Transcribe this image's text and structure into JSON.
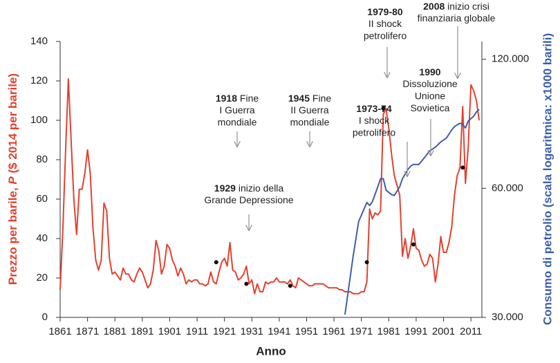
{
  "chart_data": {
    "type": "line",
    "xlabel": "Anno",
    "ylabel": [
      "Prezzo per barile, ",
      "P",
      " ($ 2014 per barile)"
    ],
    "y2label": "Consumo di petrolio (scala logaritmica: x1000 barili)",
    "xlim": [
      1861,
      2015
    ],
    "xticks": [
      1861,
      1871,
      1881,
      1891,
      1901,
      1911,
      1921,
      1931,
      1941,
      1951,
      1961,
      1971,
      1981,
      1991,
      2001,
      2011
    ],
    "ylim": [
      0,
      140
    ],
    "yticks": [
      0,
      20,
      40,
      60,
      80,
      100,
      120,
      140
    ],
    "y2lim": [
      30000,
      132000
    ],
    "y2ticks": [
      {
        "value": 30000,
        "label": "30.000"
      },
      {
        "value": 60000,
        "label": "60.000"
      },
      {
        "value": 120000,
        "label": "120.000"
      }
    ],
    "y2scale": "log",
    "left_color": "#e2412e",
    "right_color": "#3c5ea8",
    "series": [
      {
        "color": "#e2412e",
        "axis": "y",
        "x": [
          1861,
          1862,
          1863,
          1864,
          1865,
          1866,
          1867,
          1868,
          1869,
          1870,
          1871,
          1872,
          1873,
          1874,
          1875,
          1876,
          1877,
          1878,
          1879,
          1880,
          1881,
          1882,
          1883,
          1884,
          1885,
          1886,
          1887,
          1888,
          1889,
          1890,
          1891,
          1892,
          1893,
          1894,
          1895,
          1896,
          1897,
          1898,
          1899,
          1900,
          1901,
          1902,
          1903,
          1904,
          1905,
          1906,
          1907,
          1908,
          1909,
          1910,
          1911,
          1912,
          1913,
          1914,
          1915,
          1916,
          1917,
          1918,
          1919,
          1920,
          1921,
          1922,
          1923,
          1924,
          1925,
          1926,
          1927,
          1928,
          1929,
          1930,
          1931,
          1932,
          1933,
          1934,
          1935,
          1936,
          1937,
          1938,
          1939,
          1940,
          1941,
          1942,
          1943,
          1944,
          1945,
          1946,
          1947,
          1948,
          1949,
          1950,
          1951,
          1952,
          1953,
          1954,
          1955,
          1956,
          1957,
          1958,
          1959,
          1960,
          1961,
          1962,
          1963,
          1964,
          1965,
          1966,
          1967,
          1968,
          1969,
          1970,
          1971,
          1972,
          1973,
          1974,
          1975,
          1976,
          1977,
          1978,
          1979,
          1980,
          1981,
          1982,
          1983,
          1984,
          1985,
          1986,
          1987,
          1988,
          1989,
          1990,
          1991,
          1992,
          1993,
          1994,
          1995,
          1996,
          1997,
          1998,
          1999,
          2000,
          2001,
          2002,
          2003,
          2004,
          2005,
          2006,
          2007,
          2008,
          2009,
          2010,
          2011,
          2012,
          2013,
          2014
        ],
        "values": [
          14,
          45,
          85,
          121,
          90,
          60,
          42,
          65,
          65,
          73,
          85,
          73,
          45,
          29,
          24,
          29,
          58,
          54,
          30,
          22,
          23,
          21,
          19,
          25,
          22,
          22,
          19,
          18,
          22,
          25,
          23,
          19,
          15,
          17,
          24,
          39,
          34,
          22,
          26,
          37,
          35,
          29,
          26,
          21,
          25,
          22,
          17,
          19,
          18,
          19,
          19,
          17,
          17,
          16,
          17,
          23,
          18,
          17,
          23,
          28,
          30,
          26,
          38,
          24,
          23,
          19,
          20,
          22,
          26,
          17,
          19,
          12,
          17,
          13,
          13,
          18,
          17,
          18,
          18,
          20,
          18,
          18,
          18,
          17,
          19,
          16,
          15,
          20,
          19,
          18,
          17,
          16,
          16,
          17,
          17,
          17,
          17,
          16,
          15,
          15,
          15,
          15,
          14,
          14,
          13,
          13,
          13,
          12,
          12,
          12,
          13,
          13,
          18,
          55,
          50,
          53,
          52,
          54,
          103,
          106,
          96,
          83,
          72,
          67,
          62,
          31,
          40,
          30,
          36,
          45,
          35,
          34,
          29,
          26,
          27,
          32,
          30,
          18,
          27,
          41,
          33,
          33,
          38,
          46,
          62,
          72,
          76,
          107,
          68,
          86,
          118,
          115,
          110,
          100
        ]
      },
      {
        "color": "#3c5ea8",
        "axis": "y2",
        "x": [
          1965,
          1968,
          1970,
          1973,
          1974,
          1975,
          1977,
          1978,
          1979,
          1980,
          1982,
          1983,
          1985,
          1986,
          1988,
          1989,
          1990,
          1992,
          1994,
          1996,
          1998,
          2000,
          2002,
          2004,
          2005,
          2007,
          2008,
          2009,
          2010,
          2012,
          2013,
          2014
        ],
        "values": [
          30450,
          41700,
          50200,
          55600,
          54700,
          55800,
          60500,
          63200,
          63200,
          59400,
          58000,
          57700,
          60500,
          63200,
          66400,
          67600,
          68200,
          68200,
          70700,
          73400,
          74800,
          77000,
          78500,
          82100,
          83600,
          85100,
          84500,
          83000,
          86100,
          88400,
          90400,
          91700
        ]
      }
    ],
    "annotations": [
      {
        "label": "1918",
        "after": "Fine",
        "lines": [
          "I Guerra",
          "mondiale"
        ],
        "x": 1918,
        "y": 28
      },
      {
        "label": "1929",
        "after": "inizio della",
        "lines": [
          "Grande Depressione"
        ],
        "x": 1929,
        "y": 17
      },
      {
        "label": "1945",
        "after": "Fine",
        "lines": [
          "II Guerra",
          "mondiale"
        ],
        "x": 1945,
        "y": 16
      },
      {
        "label": "1973-74",
        "lines": [
          "I shock",
          "petrolifero"
        ],
        "x": 1973,
        "y": 28
      },
      {
        "label": "1979-80",
        "lines": [
          "II shock",
          "petrolifero"
        ],
        "x": 1979,
        "y": 106
      },
      {
        "label": "1990",
        "lines": [
          "Dissoluzione",
          "Unione",
          "Sovietica"
        ],
        "x": 1990,
        "y": 37
      },
      {
        "label": "2008",
        "after": "inizio crisi",
        "lines": [
          "finanziaria globale"
        ],
        "x": 2008,
        "y": 76
      }
    ]
  }
}
